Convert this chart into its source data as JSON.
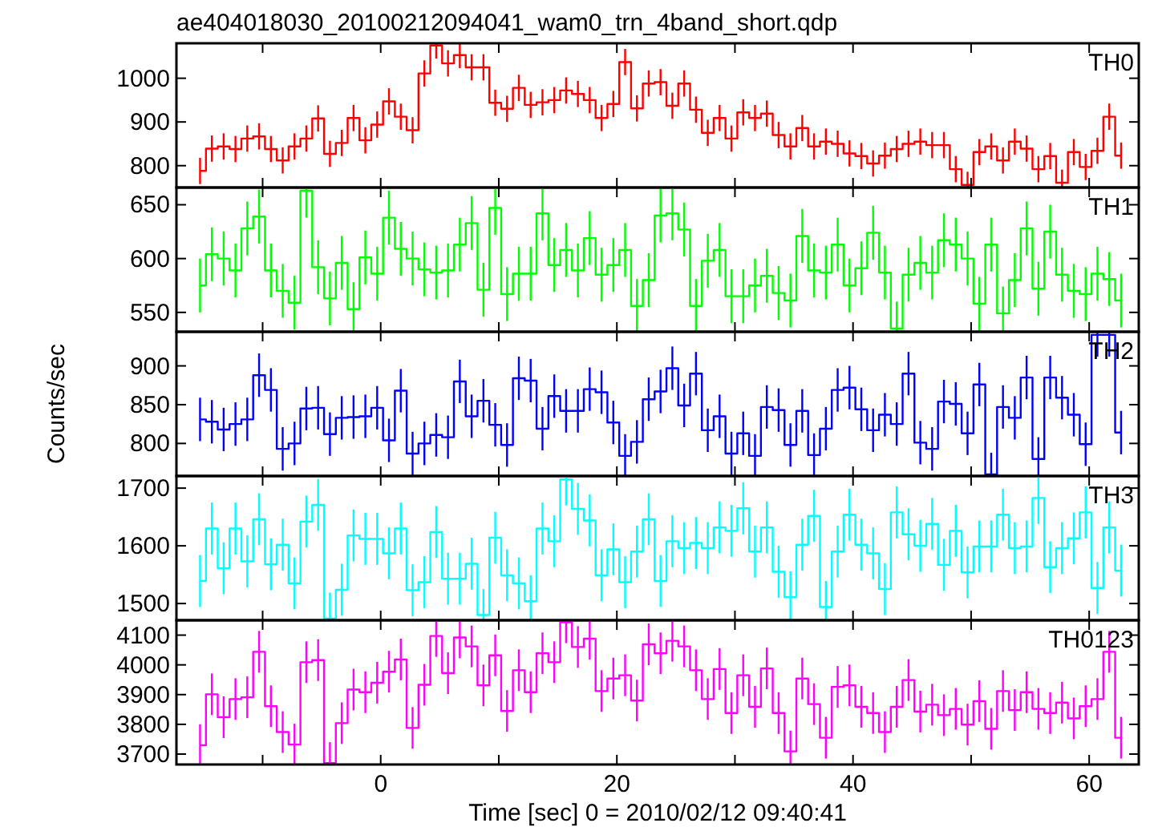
{
  "chart_data": [
    {
      "type": "step",
      "title": "ae404018030_20100212094041_wam0_trn_4band_short.qdp",
      "legend": "top right",
      "tick_labels": "y",
      "xlim": [
        -17.3,
        64.2
      ],
      "ylim": [
        750,
        1080
      ],
      "xticks": [
        {
          "value": -10,
          "label": null
        },
        {
          "value": 0,
          "label": null
        },
        {
          "value": 10,
          "label": null
        },
        {
          "value": 20,
          "label": null
        },
        {
          "value": 30,
          "label": null
        },
        {
          "value": 40,
          "label": null
        },
        {
          "value": 50,
          "label": null
        },
        {
          "value": 60,
          "label": null
        }
      ],
      "yticks": [
        800,
        900,
        1000
      ],
      "x": [
        -15.3,
        -14.3,
        -13.3,
        -12.3,
        -11.3,
        -10.3,
        -9.3,
        -8.3,
        -7.3,
        -6.3,
        -5.3,
        -4.3,
        -3.3,
        -2.3,
        -1.3,
        -0.3,
        0.7,
        1.7,
        2.7,
        3.7,
        4.7,
        5.7,
        6.7,
        7.7,
        8.7,
        9.7,
        10.7,
        11.7,
        12.7,
        13.7,
        14.7,
        15.7,
        16.7,
        17.7,
        18.7,
        19.7,
        20.7,
        21.7,
        22.7,
        23.7,
        24.7,
        25.7,
        26.7,
        27.7,
        28.7,
        29.7,
        30.7,
        31.7,
        32.7,
        33.7,
        34.7,
        35.7,
        36.7,
        37.7,
        38.7,
        39.7,
        40.7,
        41.7,
        42.7,
        43.7,
        44.7,
        45.7,
        46.7,
        47.7,
        48.7,
        49.7,
        50.7,
        51.7,
        52.7,
        53.7,
        54.7,
        55.7,
        56.7,
        57.7,
        58.7,
        59.7,
        60.7,
        61.7,
        62.7
      ],
      "series": [
        {
          "name": "TH0",
          "color": "#ff0000",
          "values": [
            788,
            839,
            844,
            838,
            862,
            867,
            838,
            812,
            844,
            862,
            908,
            827,
            852,
            909,
            858,
            894,
            947,
            912,
            881,
            1011,
            1075,
            1034,
            1053,
            1025,
            1025,
            944,
            930,
            978,
            939,
            945,
            950,
            972,
            964,
            950,
            909,
            941,
            1037,
            931,
            988,
            991,
            937,
            988,
            928,
            875,
            909,
            862,
            922,
            909,
            919,
            870,
            844,
            886,
            844,
            855,
            850,
            828,
            822,
            805,
            823,
            838,
            850,
            855,
            847,
            847,
            792,
            756,
            831,
            844,
            812,
            855,
            839,
            792,
            822,
            761,
            831,
            797,
            834,
            912,
            823
          ],
          "errors": [
            30,
            30,
            30,
            30,
            30,
            30,
            30,
            30,
            30,
            30,
            30,
            30,
            30,
            30,
            30,
            30,
            30,
            30,
            30,
            30,
            30,
            30,
            30,
            30,
            30,
            30,
            30,
            30,
            30,
            30,
            30,
            30,
            30,
            30,
            30,
            30,
            30,
            30,
            30,
            30,
            30,
            30,
            30,
            30,
            30,
            30,
            30,
            30,
            30,
            30,
            30,
            30,
            30,
            30,
            30,
            30,
            30,
            30,
            30,
            30,
            30,
            30,
            30,
            30,
            30,
            30,
            30,
            30,
            30,
            30,
            30,
            30,
            30,
            30,
            30,
            30,
            30,
            30,
            30
          ]
        }
      ]
    },
    {
      "type": "step",
      "legend": "top right",
      "tick_labels": "y",
      "xlim": [
        -17.3,
        64.2
      ],
      "ylim": [
        532,
        666
      ],
      "xticks": [
        {
          "value": -10,
          "label": null
        },
        {
          "value": 0,
          "label": null
        },
        {
          "value": 10,
          "label": null
        },
        {
          "value": 20,
          "label": null
        },
        {
          "value": 30,
          "label": null
        },
        {
          "value": 40,
          "label": null
        },
        {
          "value": 50,
          "label": null
        },
        {
          "value": 60,
          "label": null
        }
      ],
      "yticks": [
        550,
        600,
        650
      ],
      "x": [
        -15.3,
        -14.3,
        -13.3,
        -12.3,
        -11.3,
        -10.3,
        -9.3,
        -8.3,
        -7.3,
        -6.3,
        -5.3,
        -4.3,
        -3.3,
        -2.3,
        -1.3,
        -0.3,
        0.7,
        1.7,
        2.7,
        3.7,
        4.7,
        5.7,
        6.7,
        7.7,
        8.7,
        9.7,
        10.7,
        11.7,
        12.7,
        13.7,
        14.7,
        15.7,
        16.7,
        17.7,
        18.7,
        19.7,
        20.7,
        21.7,
        22.7,
        23.7,
        24.7,
        25.7,
        26.7,
        27.7,
        28.7,
        29.7,
        30.7,
        31.7,
        32.7,
        33.7,
        34.7,
        35.7,
        36.7,
        37.7,
        38.7,
        39.7,
        40.7,
        41.7,
        42.7,
        43.7,
        44.7,
        45.7,
        46.7,
        47.7,
        48.7,
        49.7,
        50.7,
        51.7,
        52.7,
        53.7,
        54.7,
        55.7,
        56.7,
        57.7,
        58.7,
        59.7,
        60.7,
        61.7,
        62.7
      ],
      "series": [
        {
          "name": "TH1",
          "color": "#00ff00",
          "values": [
            575,
            604,
            600,
            589,
            628,
            639,
            589,
            570,
            559,
            663,
            592,
            563,
            596,
            553,
            601,
            586,
            638,
            609,
            600,
            590,
            587,
            589,
            613,
            633,
            571,
            647,
            567,
            586,
            586,
            642,
            594,
            608,
            589,
            619,
            585,
            594,
            608,
            556,
            580,
            640,
            642,
            627,
            556,
            598,
            608,
            565,
            565,
            575,
            584,
            568,
            561,
            621,
            589,
            587,
            613,
            575,
            591,
            624,
            587,
            535,
            585,
            596,
            587,
            617,
            613,
            600,
            558,
            613,
            549,
            580,
            628,
            572,
            625,
            585,
            570,
            567,
            586,
            581,
            561
          ],
          "errors": [
            25,
            25,
            25,
            25,
            25,
            25,
            25,
            25,
            25,
            25,
            25,
            25,
            25,
            25,
            25,
            25,
            25,
            25,
            25,
            25,
            25,
            25,
            25,
            25,
            25,
            25,
            25,
            25,
            25,
            25,
            25,
            25,
            25,
            25,
            25,
            25,
            25,
            25,
            25,
            25,
            25,
            25,
            25,
            25,
            25,
            25,
            25,
            25,
            25,
            25,
            25,
            25,
            25,
            25,
            25,
            25,
            25,
            25,
            25,
            25,
            25,
            25,
            25,
            25,
            25,
            25,
            25,
            25,
            25,
            25,
            25,
            25,
            25,
            25,
            25,
            25,
            25,
            25,
            25
          ]
        }
      ]
    },
    {
      "type": "step",
      "ylabel": "Counts/sec",
      "legend": "top right",
      "tick_labels": "y",
      "xlim": [
        -17.3,
        64.2
      ],
      "ylim": [
        758,
        944
      ],
      "xticks": [
        {
          "value": -10,
          "label": null
        },
        {
          "value": 0,
          "label": null
        },
        {
          "value": 10,
          "label": null
        },
        {
          "value": 20,
          "label": null
        },
        {
          "value": 30,
          "label": null
        },
        {
          "value": 40,
          "label": null
        },
        {
          "value": 50,
          "label": null
        },
        {
          "value": 60,
          "label": null
        }
      ],
      "yticks": [
        800,
        850,
        900
      ],
      "x": [
        -15.3,
        -14.3,
        -13.3,
        -12.3,
        -11.3,
        -10.3,
        -9.3,
        -8.3,
        -7.3,
        -6.3,
        -5.3,
        -4.3,
        -3.3,
        -2.3,
        -1.3,
        -0.3,
        0.7,
        1.7,
        2.7,
        3.7,
        4.7,
        5.7,
        6.7,
        7.7,
        8.7,
        9.7,
        10.7,
        11.7,
        12.7,
        13.7,
        14.7,
        15.7,
        16.7,
        17.7,
        18.7,
        19.7,
        20.7,
        21.7,
        22.7,
        23.7,
        24.7,
        25.7,
        26.7,
        27.7,
        28.7,
        29.7,
        30.7,
        31.7,
        32.7,
        33.7,
        34.7,
        35.7,
        36.7,
        37.7,
        38.7,
        39.7,
        40.7,
        41.7,
        42.7,
        43.7,
        44.7,
        45.7,
        46.7,
        47.7,
        48.7,
        49.7,
        50.7,
        51.7,
        52.7,
        53.7,
        54.7,
        55.7,
        56.7,
        57.7,
        58.7,
        59.7,
        60.7,
        61.7,
        62.7
      ],
      "series": [
        {
          "name": "TH2",
          "color": "#0000ff",
          "values": [
            831,
            828,
            818,
            825,
            831,
            888,
            869,
            793,
            800,
            845,
            846,
            812,
            833,
            834,
            835,
            846,
            804,
            868,
            787,
            800,
            811,
            808,
            880,
            835,
            855,
            824,
            798,
            884,
            881,
            819,
            861,
            842,
            842,
            870,
            866,
            827,
            784,
            802,
            857,
            867,
            897,
            849,
            890,
            817,
            835,
            787,
            813,
            784,
            847,
            843,
            798,
            842,
            785,
            819,
            869,
            872,
            844,
            817,
            837,
            825,
            890,
            801,
            793,
            854,
            851,
            813,
            876,
            760,
            847,
            833,
            885,
            780,
            885,
            859,
            837,
            799,
            940,
            940,
            814
          ],
          "errors": [
            28,
            28,
            28,
            28,
            28,
            28,
            28,
            28,
            28,
            28,
            28,
            28,
            28,
            28,
            28,
            28,
            28,
            28,
            28,
            28,
            28,
            28,
            28,
            28,
            28,
            28,
            28,
            28,
            28,
            28,
            28,
            28,
            28,
            28,
            28,
            28,
            28,
            28,
            28,
            28,
            28,
            28,
            28,
            28,
            28,
            28,
            28,
            28,
            28,
            28,
            28,
            28,
            28,
            28,
            28,
            28,
            28,
            28,
            28,
            28,
            28,
            28,
            28,
            28,
            28,
            28,
            28,
            28,
            28,
            28,
            28,
            28,
            28,
            28,
            28,
            28,
            28,
            28,
            28
          ]
        }
      ]
    },
    {
      "type": "step",
      "legend": "top right",
      "tick_labels": "y",
      "xlim": [
        -17.3,
        64.2
      ],
      "ylim": [
        1471,
        1721
      ],
      "xticks": [
        {
          "value": -10,
          "label": null
        },
        {
          "value": 0,
          "label": null
        },
        {
          "value": 10,
          "label": null
        },
        {
          "value": 20,
          "label": null
        },
        {
          "value": 30,
          "label": null
        },
        {
          "value": 40,
          "label": null
        },
        {
          "value": 50,
          "label": null
        },
        {
          "value": 60,
          "label": null
        }
      ],
      "yticks": [
        1500,
        1600,
        1700
      ],
      "x": [
        -15.3,
        -14.3,
        -13.3,
        -12.3,
        -11.3,
        -10.3,
        -9.3,
        -8.3,
        -7.3,
        -6.3,
        -5.3,
        -4.3,
        -3.3,
        -2.3,
        -1.3,
        -0.3,
        0.7,
        1.7,
        2.7,
        3.7,
        4.7,
        5.7,
        6.7,
        7.7,
        8.7,
        9.7,
        10.7,
        11.7,
        12.7,
        13.7,
        14.7,
        15.7,
        16.7,
        17.7,
        18.7,
        19.7,
        20.7,
        21.7,
        22.7,
        23.7,
        24.7,
        25.7,
        26.7,
        27.7,
        28.7,
        29.7,
        30.7,
        31.7,
        32.7,
        33.7,
        34.7,
        35.7,
        36.7,
        37.7,
        38.7,
        39.7,
        40.7,
        41.7,
        42.7,
        43.7,
        44.7,
        45.7,
        46.7,
        47.7,
        48.7,
        49.7,
        50.7,
        51.7,
        52.7,
        53.7,
        54.7,
        55.7,
        56.7,
        57.7,
        58.7,
        59.7,
        60.7,
        61.7,
        62.7
      ],
      "series": [
        {
          "name": "TH3",
          "color": "#00ffff",
          "values": [
            1539,
            1630,
            1561,
            1630,
            1573,
            1646,
            1568,
            1602,
            1535,
            1642,
            1671,
            1474,
            1524,
            1618,
            1612,
            1612,
            1587,
            1630,
            1523,
            1537,
            1624,
            1543,
            1543,
            1569,
            1480,
            1614,
            1549,
            1535,
            1504,
            1630,
            1608,
            1715,
            1664,
            1644,
            1549,
            1594,
            1537,
            1590,
            1646,
            1539,
            1608,
            1596,
            1605,
            1596,
            1632,
            1626,
            1665,
            1590,
            1632,
            1555,
            1511,
            1602,
            1652,
            1494,
            1590,
            1654,
            1602,
            1587,
            1525,
            1658,
            1620,
            1600,
            1638,
            1567,
            1626,
            1554,
            1599,
            1599,
            1654,
            1596,
            1599,
            1683,
            1563,
            1596,
            1613,
            1658,
            1527,
            1632,
            1557
          ],
          "errors": [
            45,
            45,
            45,
            45,
            45,
            45,
            45,
            45,
            45,
            45,
            45,
            45,
            45,
            45,
            45,
            45,
            45,
            45,
            45,
            45,
            45,
            45,
            45,
            45,
            45,
            45,
            45,
            45,
            45,
            45,
            45,
            45,
            45,
            45,
            45,
            45,
            45,
            45,
            45,
            45,
            45,
            45,
            45,
            45,
            45,
            45,
            45,
            45,
            45,
            45,
            45,
            45,
            45,
            45,
            45,
            45,
            45,
            45,
            45,
            45,
            45,
            45,
            45,
            45,
            45,
            45,
            45,
            45,
            45,
            45,
            45,
            45,
            45,
            45,
            45,
            45,
            45,
            45,
            45
          ]
        }
      ]
    },
    {
      "type": "step",
      "xlabel": "Time [sec] 0 = 2010/02/12 09:40:41",
      "legend": "top right",
      "xlim": [
        -17.3,
        64.2
      ],
      "ylim": [
        3665,
        4150
      ],
      "xticks": [
        {
          "value": -10,
          "label": null
        },
        0,
        {
          "value": 10,
          "label": null
        },
        20,
        {
          "value": 30,
          "label": null
        },
        40,
        {
          "value": 50,
          "label": null
        },
        60
      ],
      "yticks": [
        3700,
        3800,
        3900,
        4000,
        4100
      ],
      "x": [
        -15.3,
        -14.3,
        -13.3,
        -12.3,
        -11.3,
        -10.3,
        -9.3,
        -8.3,
        -7.3,
        -6.3,
        -5.3,
        -4.3,
        -3.3,
        -2.3,
        -1.3,
        -0.3,
        0.7,
        1.7,
        2.7,
        3.7,
        4.7,
        5.7,
        6.7,
        7.7,
        8.7,
        9.7,
        10.7,
        11.7,
        12.7,
        13.7,
        14.7,
        15.7,
        16.7,
        17.7,
        18.7,
        19.7,
        20.7,
        21.7,
        22.7,
        23.7,
        24.7,
        25.7,
        26.7,
        27.7,
        28.7,
        29.7,
        30.7,
        31.7,
        32.7,
        33.7,
        34.7,
        35.7,
        36.7,
        37.7,
        38.7,
        39.7,
        40.7,
        41.7,
        42.7,
        43.7,
        44.7,
        45.7,
        46.7,
        47.7,
        48.7,
        49.7,
        50.7,
        51.7,
        52.7,
        53.7,
        54.7,
        55.7,
        56.7,
        57.7,
        58.7,
        59.7,
        60.7,
        61.7,
        62.7
      ],
      "series": [
        {
          "name": "TH0123",
          "color": "#ff00ff",
          "values": [
            3730,
            3901,
            3824,
            3885,
            3891,
            4044,
            3861,
            3774,
            3732,
            4009,
            4016,
            3670,
            3804,
            3917,
            3908,
            3940,
            3977,
            4018,
            3788,
            3933,
            4097,
            3972,
            4092,
            4062,
            3931,
            4032,
            3845,
            3982,
            3908,
            4039,
            4009,
            4143,
            4060,
            4088,
            3912,
            3954,
            3965,
            3880,
            4069,
            4039,
            4081,
            4062,
            3982,
            3885,
            3986,
            3838,
            3965,
            3859,
            3988,
            3838,
            3709,
            3954,
            3868,
            3755,
            3926,
            3931,
            3859,
            3838,
            3774,
            3859,
            3949,
            3843,
            3866,
            3831,
            3852,
            3799,
            3878,
            3785,
            3912,
            3848,
            3908,
            3852,
            3838,
            3873,
            3820,
            3861,
            3885,
            4044,
            3755
          ],
          "errors": [
            70,
            70,
            70,
            70,
            70,
            70,
            70,
            70,
            70,
            70,
            70,
            70,
            70,
            70,
            70,
            70,
            70,
            70,
            70,
            70,
            70,
            70,
            70,
            70,
            70,
            70,
            70,
            70,
            70,
            70,
            70,
            70,
            70,
            70,
            70,
            70,
            70,
            70,
            70,
            70,
            70,
            70,
            70,
            70,
            70,
            70,
            70,
            70,
            70,
            70,
            70,
            70,
            70,
            70,
            70,
            70,
            70,
            70,
            70,
            70,
            70,
            70,
            70,
            70,
            70,
            70,
            70,
            70,
            70,
            70,
            70,
            70,
            70,
            70,
            70,
            70,
            70,
            70,
            70
          ]
        }
      ]
    }
  ]
}
